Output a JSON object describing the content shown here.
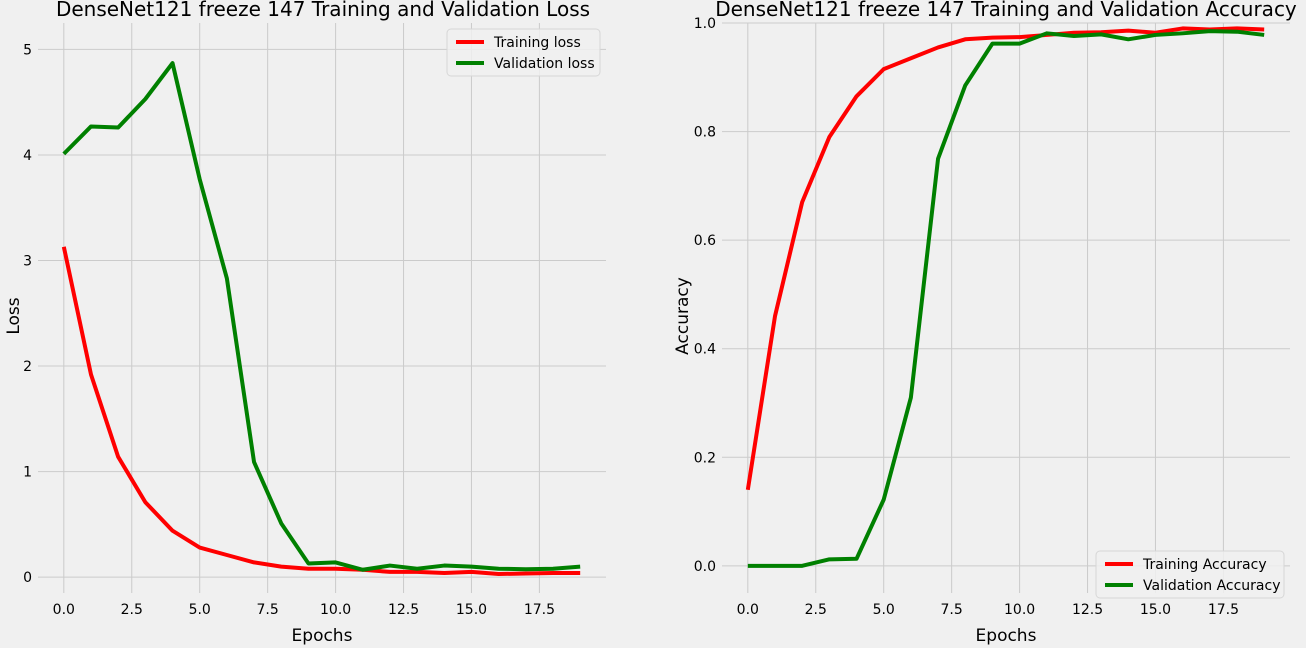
{
  "chart_data": [
    {
      "type": "line",
      "title": "DenseNet121 freeze 147 Training and Validation Loss",
      "xlabel": "Epochs",
      "ylabel": "Loss",
      "xlim": [
        -0.95,
        19.95
      ],
      "ylim": [
        -0.15,
        5.25
      ],
      "x_ticks": [
        0,
        2.5,
        5,
        7.5,
        10,
        12.5,
        15,
        17.5
      ],
      "x_tick_labels": [
        "0.0",
        "2.5",
        "5.0",
        "7.5",
        "10.0",
        "12.5",
        "15.0",
        "17.5"
      ],
      "y_ticks": [
        0,
        1,
        2,
        3,
        4,
        5
      ],
      "y_tick_labels": [
        "0",
        "1",
        "2",
        "3",
        "4",
        "5"
      ],
      "grid": true,
      "legend_position": "top-right",
      "x": [
        0,
        1,
        2,
        3,
        4,
        5,
        6,
        7,
        8,
        9,
        10,
        11,
        12,
        13,
        14,
        15,
        16,
        17,
        18,
        19
      ],
      "series": [
        {
          "name": "Training loss",
          "color": "#ff0000",
          "values": [
            3.13,
            1.92,
            1.14,
            0.71,
            0.44,
            0.28,
            0.21,
            0.14,
            0.1,
            0.08,
            0.08,
            0.07,
            0.05,
            0.05,
            0.04,
            0.05,
            0.03,
            0.035,
            0.04,
            0.04
          ]
        },
        {
          "name": "Validation loss",
          "color": "#008000",
          "values": [
            4.01,
            4.27,
            4.26,
            4.53,
            4.87,
            3.77,
            2.83,
            1.09,
            0.51,
            0.13,
            0.14,
            0.07,
            0.11,
            0.08,
            0.11,
            0.1,
            0.08,
            0.075,
            0.08,
            0.1
          ]
        }
      ]
    },
    {
      "type": "line",
      "title": "DenseNet121 freeze 147 Training and Validation Accuracy",
      "xlabel": "Epochs",
      "ylabel": "Accuracy",
      "xlim": [
        -0.95,
        19.95
      ],
      "ylim": [
        -0.05,
        1.0
      ],
      "x_ticks": [
        0,
        2.5,
        5,
        7.5,
        10,
        12.5,
        15,
        17.5
      ],
      "x_tick_labels": [
        "0.0",
        "2.5",
        "5.0",
        "7.5",
        "10.0",
        "12.5",
        "15.0",
        "17.5"
      ],
      "y_ticks": [
        0,
        0.2,
        0.4,
        0.6,
        0.8,
        1.0
      ],
      "y_tick_labels": [
        "0.0",
        "0.2",
        "0.4",
        "0.6",
        "0.8",
        "1.0"
      ],
      "grid": true,
      "legend_position": "bottom-right",
      "x": [
        0,
        1,
        2,
        3,
        4,
        5,
        6,
        7,
        8,
        9,
        10,
        11,
        12,
        13,
        14,
        15,
        16,
        17,
        18,
        19
      ],
      "series": [
        {
          "name": "Training Accuracy",
          "color": "#ff0000",
          "values": [
            0.14,
            0.46,
            0.67,
            0.79,
            0.865,
            0.915,
            0.935,
            0.955,
            0.97,
            0.973,
            0.974,
            0.978,
            0.982,
            0.983,
            0.986,
            0.982,
            0.99,
            0.988,
            0.99,
            0.988
          ]
        },
        {
          "name": "Validation Accuracy",
          "color": "#008000",
          "values": [
            0.0,
            0.0,
            0.0,
            0.012,
            0.013,
            0.122,
            0.31,
            0.75,
            0.885,
            0.962,
            0.962,
            0.981,
            0.976,
            0.979,
            0.97,
            0.978,
            0.981,
            0.985,
            0.984,
            0.978
          ]
        }
      ]
    }
  ]
}
